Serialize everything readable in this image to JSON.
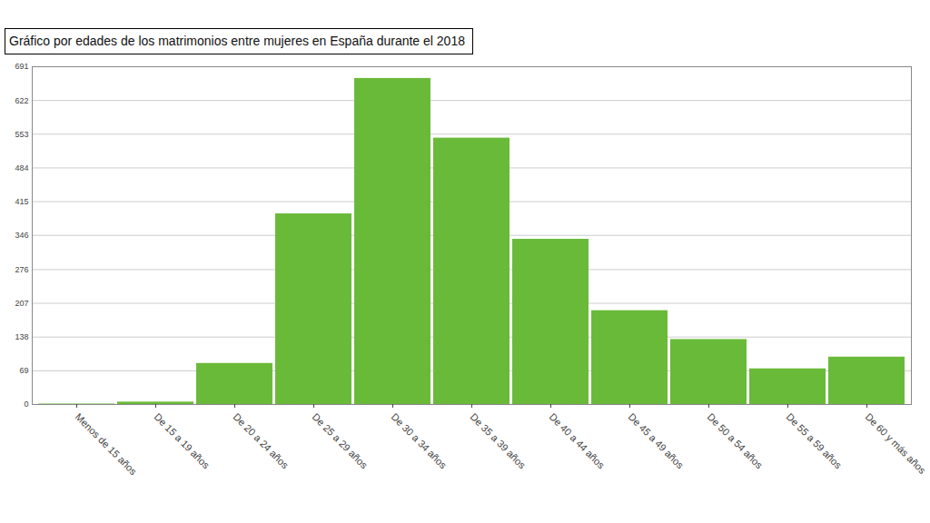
{
  "chart_data": {
    "type": "bar",
    "title": "Gráfico por edades de los matrimonios entre mujeres en España durante el 2018",
    "categories": [
      "Menos de 15 años",
      "De 15 a 19 años",
      "De 20 a 24 años",
      "De 25 a 29 años",
      "De 30 a 34 años",
      "De 35 a 39 años",
      "De 40 a 44 años",
      "De 45 a 49 años",
      "De 50 a 54 años",
      "De 55 a 59 años",
      "De 60 y más años"
    ],
    "values": [
      1,
      5,
      84,
      390,
      667,
      545,
      338,
      192,
      133,
      73,
      97
    ],
    "color": "#6aba3a",
    "ylim": [
      0,
      691
    ],
    "yticks": [
      0,
      69,
      138,
      207,
      276,
      346,
      415,
      484,
      553,
      622,
      691
    ],
    "grid": true
  }
}
